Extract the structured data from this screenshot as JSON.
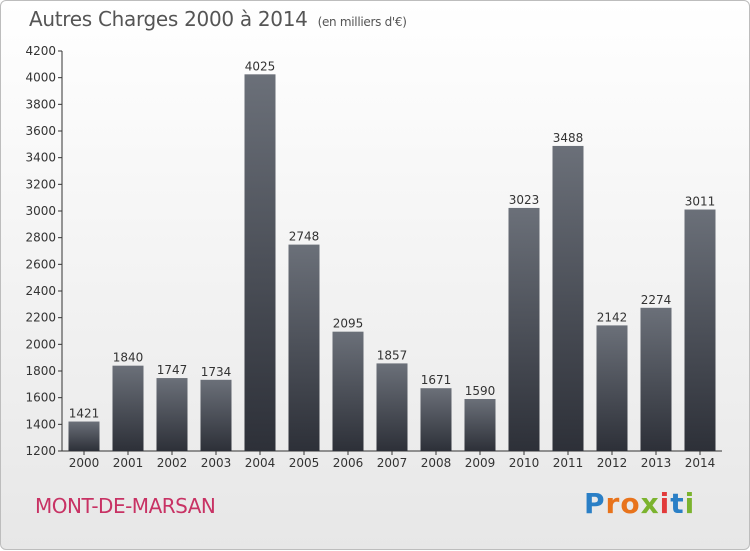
{
  "header": {
    "title": "Autres Charges 2000 à 2014",
    "subtitle": "(en milliers d'€)"
  },
  "footer": {
    "city": "MONT-DE-MARSAN",
    "logo": "Proxiti"
  },
  "colors": {
    "bar_top": "#6b7079",
    "bar_bottom": "#2d3038",
    "city": "#c83264"
  },
  "chart_data": {
    "type": "bar",
    "title": "Autres Charges 2000 à 2014",
    "subtitle": "(en milliers d'€)",
    "categories": [
      "2000",
      "2001",
      "2002",
      "2003",
      "2004",
      "2005",
      "2006",
      "2007",
      "2008",
      "2009",
      "2010",
      "2011",
      "2012",
      "2013",
      "2014"
    ],
    "values": [
      1421,
      1840,
      1747,
      1734,
      4025,
      2748,
      2095,
      1857,
      1671,
      1590,
      3023,
      3488,
      2142,
      2274,
      3011
    ],
    "ylim": [
      1200,
      4200
    ],
    "yticks": [
      1200,
      1400,
      1600,
      1800,
      2000,
      2200,
      2400,
      2600,
      2800,
      3000,
      3200,
      3400,
      3600,
      3800,
      4000,
      4200
    ],
    "grid": false,
    "data_labels": true
  }
}
